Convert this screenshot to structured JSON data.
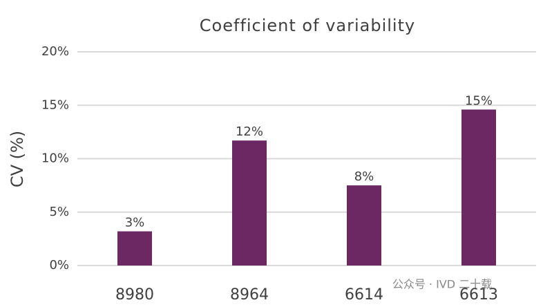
{
  "chart_data": {
    "type": "bar",
    "title": "Coefficient of variability",
    "y_label": "CV (%)",
    "categories": [
      "8980",
      "8964",
      "6614",
      "6613"
    ],
    "values": [
      3.2,
      11.7,
      7.5,
      14.6
    ],
    "value_labels": [
      "3%",
      "12%",
      "8%",
      "15%"
    ],
    "color": "#6b2862",
    "ylim": [
      0,
      20
    ],
    "yticks": [
      {
        "value": 0,
        "label": "0%"
      },
      {
        "value": 5,
        "label": "5%"
      },
      {
        "value": 10,
        "label": "10%"
      },
      {
        "value": 15,
        "label": "15%"
      },
      {
        "value": 20,
        "label": "20%"
      }
    ],
    "grid": true,
    "watermark": "公众号 · IVD 二十载"
  }
}
